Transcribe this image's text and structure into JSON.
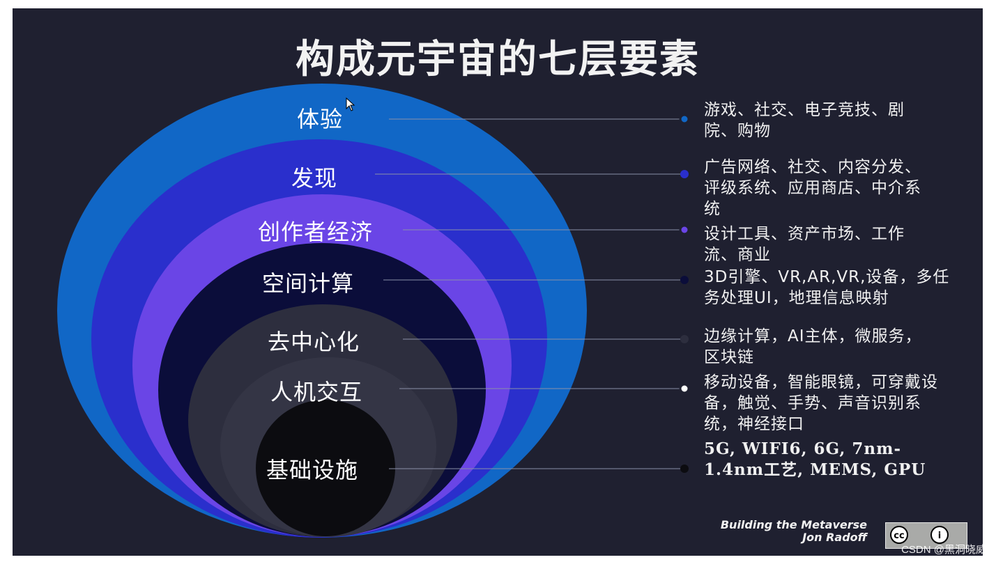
{
  "title": "构成元宇宙的七层要素",
  "layers": [
    {
      "label": "体验",
      "description": "游戏、社交、电子竞技、剧院、购物",
      "color": "#1167c6"
    },
    {
      "label": "发现",
      "description": "广告网络、社交、内容分发、评级系统、应用商店、中介系统",
      "color": "#2a2fcc"
    },
    {
      "label": "创作者经济",
      "description": "设计工具、资产市场、工作流、商业",
      "color": "#6a45e6"
    },
    {
      "label": "空间计算",
      "description": "3D引擎、VR,AR,VR,设备，多任务处理UI，地理信息映射",
      "color": "#0b0d3a"
    },
    {
      "label": "去中心化",
      "description": "边缘计算，AI主体，微服务，区块链",
      "color": "#2d2e3e"
    },
    {
      "label": "人机交互",
      "description": "移动设备，智能眼镜，可穿戴设备，触觉、手势、声音识别系统，神经接口",
      "color": "#2d2e3e"
    },
    {
      "label": "基础设施",
      "description": "5G, WIFI6, 6G, 7nm-1.4nm工艺, MEMS, GPU",
      "color": "#0c0c10"
    }
  ],
  "credit": {
    "line1": "Building the Metaverse",
    "line2": "Jon Radoff"
  },
  "license_badge": {
    "icons": [
      "creative-commons-icon",
      "attribution-icon"
    ]
  },
  "watermark": "CSDN @黑洞晓威"
}
